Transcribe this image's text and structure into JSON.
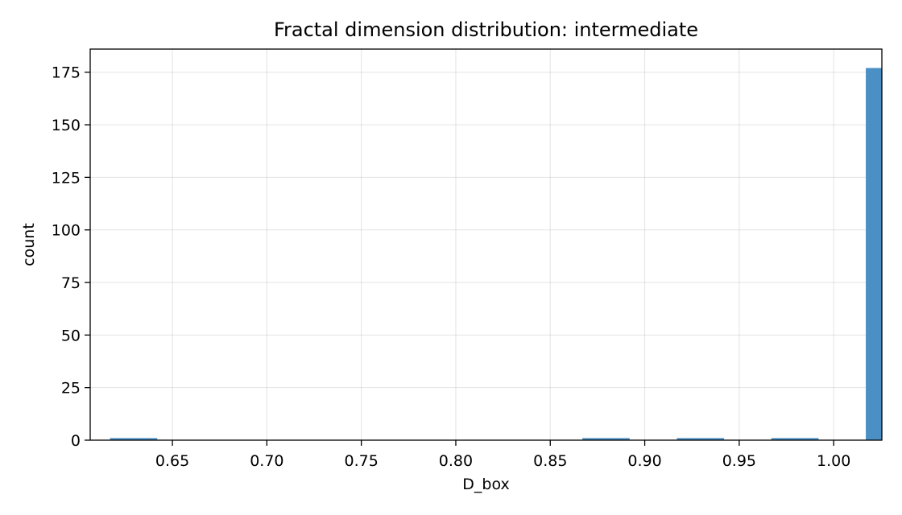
{
  "chart_data": {
    "type": "bar",
    "title": "Fractal dimension distribution: intermediate",
    "xlabel": "D_box",
    "ylabel": "count",
    "xlim": [
      0.6065,
      1.0255
    ],
    "ylim": [
      0,
      186
    ],
    "xticks": [
      {
        "value": 0.65,
        "label": "0.65"
      },
      {
        "value": 0.7,
        "label": "0.70"
      },
      {
        "value": 0.75,
        "label": "0.75"
      },
      {
        "value": 0.8,
        "label": "0.80"
      },
      {
        "value": 0.85,
        "label": "0.85"
      },
      {
        "value": 0.9,
        "label": "0.90"
      },
      {
        "value": 0.95,
        "label": "0.95"
      },
      {
        "value": 1.0,
        "label": "1.00"
      }
    ],
    "yticks": [
      {
        "value": 0,
        "label": "0"
      },
      {
        "value": 25,
        "label": "25"
      },
      {
        "value": 50,
        "label": "50"
      },
      {
        "value": 75,
        "label": "75"
      },
      {
        "value": 100,
        "label": "100"
      },
      {
        "value": 125,
        "label": "125"
      },
      {
        "value": 150,
        "label": "150"
      },
      {
        "value": 175,
        "label": "175"
      }
    ],
    "grid": true,
    "bar_color": "#4a90c4",
    "bins": [
      {
        "x0": 0.6255,
        "x1": 0.6505,
        "count": 1
      },
      {
        "x0": 0.8755,
        "x1": 0.9005,
        "count": 1
      },
      {
        "x0": 0.9255,
        "x1": 0.9505,
        "count": 1
      },
      {
        "x0": 0.9755,
        "x1": 1.0005,
        "count": 1
      },
      {
        "x0": 1.0255,
        "x1": 1.0505,
        "count": 177
      }
    ]
  }
}
